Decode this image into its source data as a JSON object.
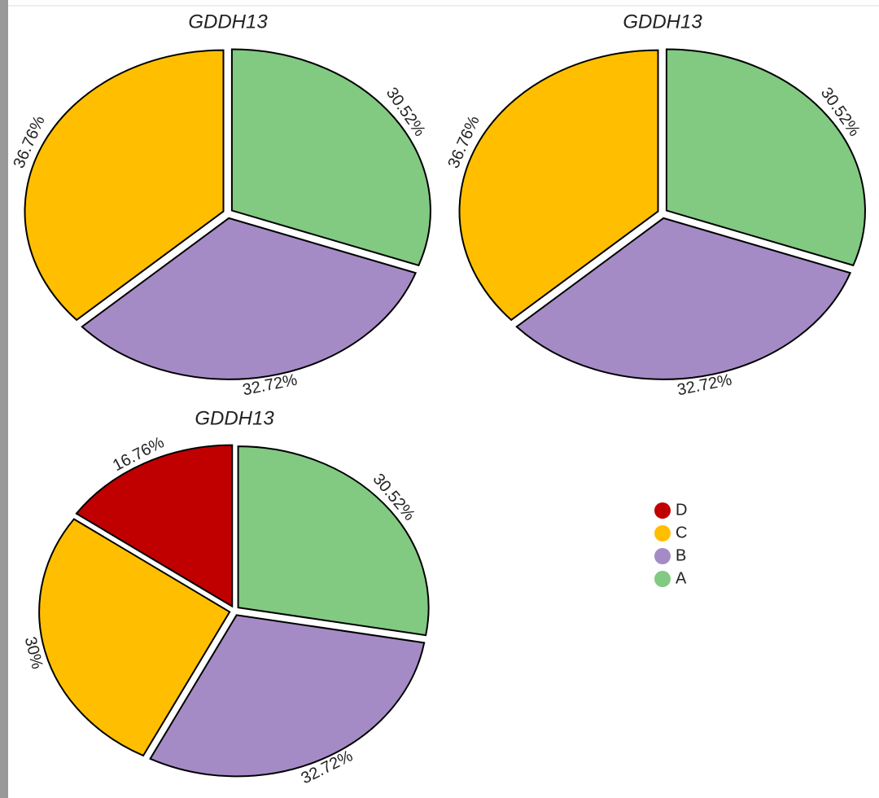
{
  "chart_data": [
    {
      "type": "pie",
      "title": "GDDH13",
      "values": [
        30.52,
        32.72,
        36.76
      ],
      "value_labels": [
        "30.52%",
        "32.72%",
        "36.76%"
      ],
      "colors": [
        "#82c982",
        "#a58bc6",
        "#ffbf00"
      ]
    },
    {
      "type": "pie",
      "title": "GDDH13",
      "values": [
        30.52,
        32.72,
        36.76
      ],
      "value_labels": [
        "30.52%",
        "32.72%",
        "36.76%"
      ],
      "colors": [
        "#82c982",
        "#a58bc6",
        "#ffbf00"
      ]
    },
    {
      "type": "pie",
      "title": "GDDH13",
      "categories": [
        "A",
        "B",
        "C",
        "D"
      ],
      "values": [
        30.52,
        32.72,
        30,
        16.76
      ],
      "value_labels": [
        "30.52%",
        "32.72%",
        "30%",
        "16.76%"
      ],
      "colors": [
        "#82c982",
        "#a58bc6",
        "#ffbf00",
        "#c00000"
      ],
      "legend": "right",
      "legend_reversed": true
    }
  ]
}
